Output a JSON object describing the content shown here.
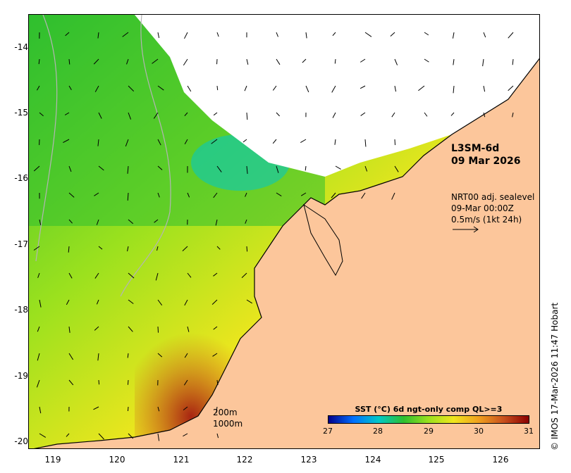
{
  "product": {
    "code": "L3SM-6d",
    "date": "09 Mar 2026"
  },
  "vectors": {
    "line1": "NRT00 adj. sealevel",
    "line2": "09-Mar 00:00Z",
    "line3": "0.5m/s (1kt 24h)"
  },
  "contours": {
    "label1": "200m",
    "label2": "1000m"
  },
  "colorbar": {
    "title": "SST (°C) 6d ngt-only comp QL>=3",
    "min": 27,
    "max": 31,
    "ticks": [
      "27",
      "28",
      "29",
      "30",
      "31"
    ],
    "colors": [
      "#00008b",
      "#0070ff",
      "#00c8c8",
      "#2fbf2f",
      "#9be11e",
      "#f0e61e",
      "#f0a01e",
      "#c8501e",
      "#8b0000"
    ]
  },
  "axes": {
    "lat_ticks": [
      "-14",
      "-15",
      "-16",
      "-17",
      "-18",
      "-19",
      "-20"
    ],
    "lon_ticks": [
      "119",
      "120",
      "121",
      "122",
      "123",
      "124",
      "125",
      "126"
    ]
  },
  "colors": {
    "land": "#fcc69b",
    "cloud": "#ffffff",
    "coast": "#000000",
    "contour": "#b4b4b4"
  },
  "credit": "© IMOS 17-Mar-2026 11:47 Hobart"
}
